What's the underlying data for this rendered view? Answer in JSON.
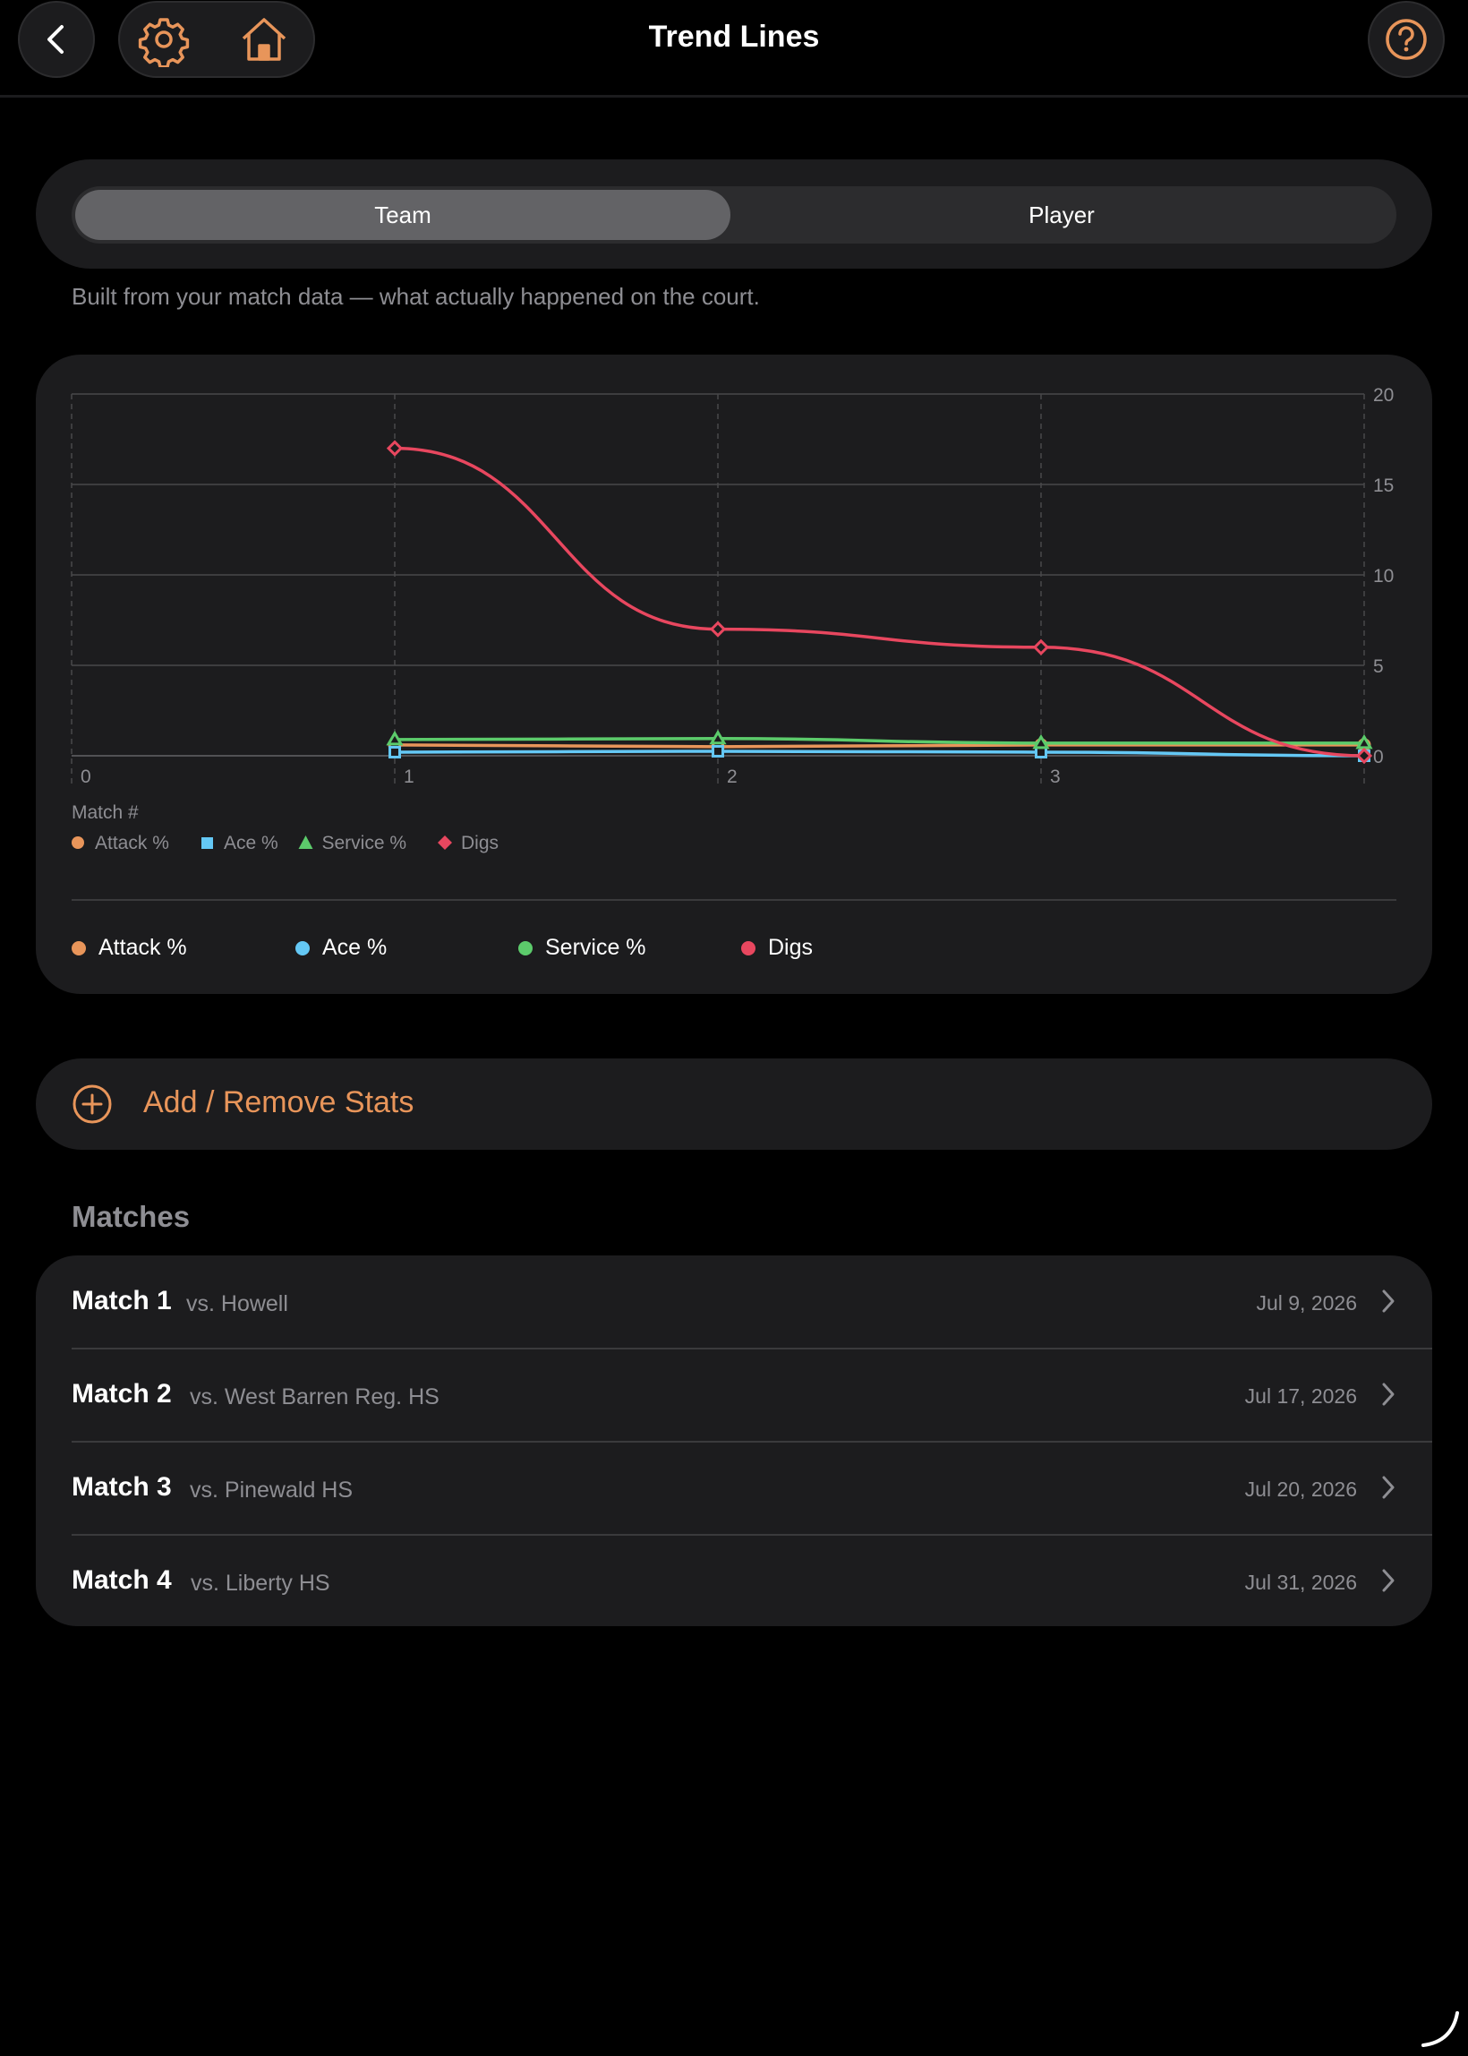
{
  "header": {
    "title": "Trend Lines",
    "back_icon": "chevron-left-icon",
    "settings_icon": "gear-icon",
    "home_icon": "home-icon",
    "help_icon": "question-circle-icon",
    "accent_color": "#e8955a"
  },
  "segment": {
    "options": [
      "Team",
      "Player"
    ],
    "selected": "Team"
  },
  "subtitle": "Built from your match data — what actually happened on the court.",
  "chart_data": {
    "type": "line",
    "xlabel": "Match #",
    "ylabel": "",
    "xlim": [
      0,
      4
    ],
    "ylim": [
      0,
      20
    ],
    "x_ticks": [
      "0",
      "1",
      "2",
      "3"
    ],
    "y_ticks": [
      "0",
      "5",
      "10",
      "15",
      "20"
    ],
    "grid": true,
    "x": [
      1,
      2,
      3,
      4
    ],
    "series": [
      {
        "name": "Attack %",
        "color": "#e8955a",
        "marker": "circle",
        "values": [
          0.6,
          0.5,
          0.6,
          0.6
        ]
      },
      {
        "name": "Ace %",
        "color": "#64c8f5",
        "marker": "square",
        "values": [
          0.2,
          0.25,
          0.2,
          0.0
        ]
      },
      {
        "name": "Service %",
        "color": "#5ccb6b",
        "marker": "triangle",
        "values": [
          0.9,
          0.95,
          0.7,
          0.7
        ]
      },
      {
        "name": "Digs",
        "color": "#e8475f",
        "marker": "diamond",
        "values": [
          17,
          7,
          6,
          0
        ]
      }
    ]
  },
  "legend_bottom": [
    "Attack %",
    "Ace %",
    "Service %",
    "Digs"
  ],
  "add_stats": {
    "label": "Add / Remove Stats",
    "icon": "plus-circle-icon"
  },
  "matches": {
    "heading": "Matches",
    "items": [
      {
        "name": "Match 1",
        "opponent": "vs. Howell",
        "date": "Jul 9, 2026"
      },
      {
        "name": "Match 2",
        "opponent": "vs. West Barren Reg. HS",
        "date": "Jul 17, 2026"
      },
      {
        "name": "Match 3",
        "opponent": "vs. Pinewald HS",
        "date": "Jul 20, 2026"
      },
      {
        "name": "Match 4",
        "opponent": "vs. Liberty HS",
        "date": "Jul 31, 2026"
      }
    ]
  }
}
